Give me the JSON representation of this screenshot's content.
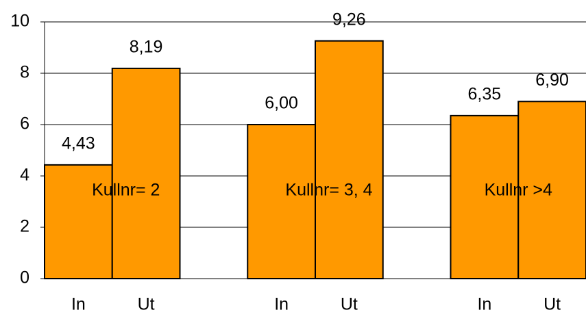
{
  "chart_data": {
    "type": "bar",
    "categories": [
      "In",
      "Ut",
      "In",
      "Ut",
      "In",
      "Ut"
    ],
    "values": [
      4.43,
      8.19,
      6.0,
      9.26,
      6.35,
      6.9
    ],
    "value_labels": [
      "4,43",
      "8,19",
      "6,00",
      "9,26",
      "6,35",
      "6,90"
    ],
    "annotations": [
      "Kullnr= 2",
      "Kullnr= 3, 4",
      "Kullnr >4"
    ],
    "color": "#ff9900",
    "ylim": [
      0,
      10
    ],
    "yticks": [
      0,
      2,
      4,
      6,
      8,
      10
    ],
    "grid": true
  }
}
